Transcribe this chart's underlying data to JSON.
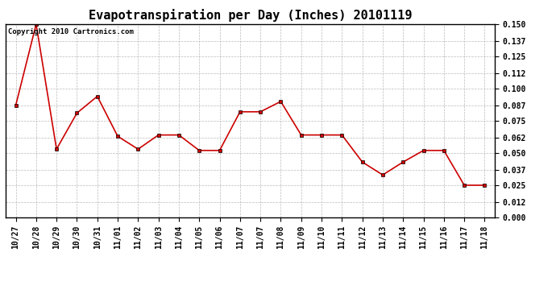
{
  "title": "Evapotranspiration per Day (Inches) 20101119",
  "copyright_text": "Copyright 2010 Cartronics.com",
  "x_labels": [
    "10/27",
    "10/28",
    "10/29",
    "10/30",
    "10/31",
    "11/01",
    "11/02",
    "11/03",
    "11/04",
    "11/05",
    "11/06",
    "11/07",
    "11/07",
    "11/08",
    "11/09",
    "11/10",
    "11/11",
    "11/12",
    "11/13",
    "11/14",
    "11/15",
    "11/16",
    "11/17",
    "11/18"
  ],
  "y_values": [
    0.087,
    0.15,
    0.053,
    0.081,
    0.094,
    0.063,
    0.053,
    0.064,
    0.064,
    0.052,
    0.052,
    0.082,
    0.082,
    0.09,
    0.064,
    0.064,
    0.064,
    0.043,
    0.033,
    0.043,
    0.052,
    0.052,
    0.025,
    0.025
  ],
  "ylim": [
    0.0,
    0.15
  ],
  "yticks": [
    0.0,
    0.012,
    0.025,
    0.037,
    0.05,
    0.062,
    0.075,
    0.087,
    0.1,
    0.112,
    0.125,
    0.137,
    0.15
  ],
  "line_color": "#cc0000",
  "marker": "s",
  "marker_size": 3,
  "background_color": "#ffffff",
  "plot_bg_color": "#ffffff",
  "grid_color": "#aaaaaa",
  "title_fontsize": 11,
  "tick_fontsize": 7,
  "copyright_fontsize": 6.5
}
